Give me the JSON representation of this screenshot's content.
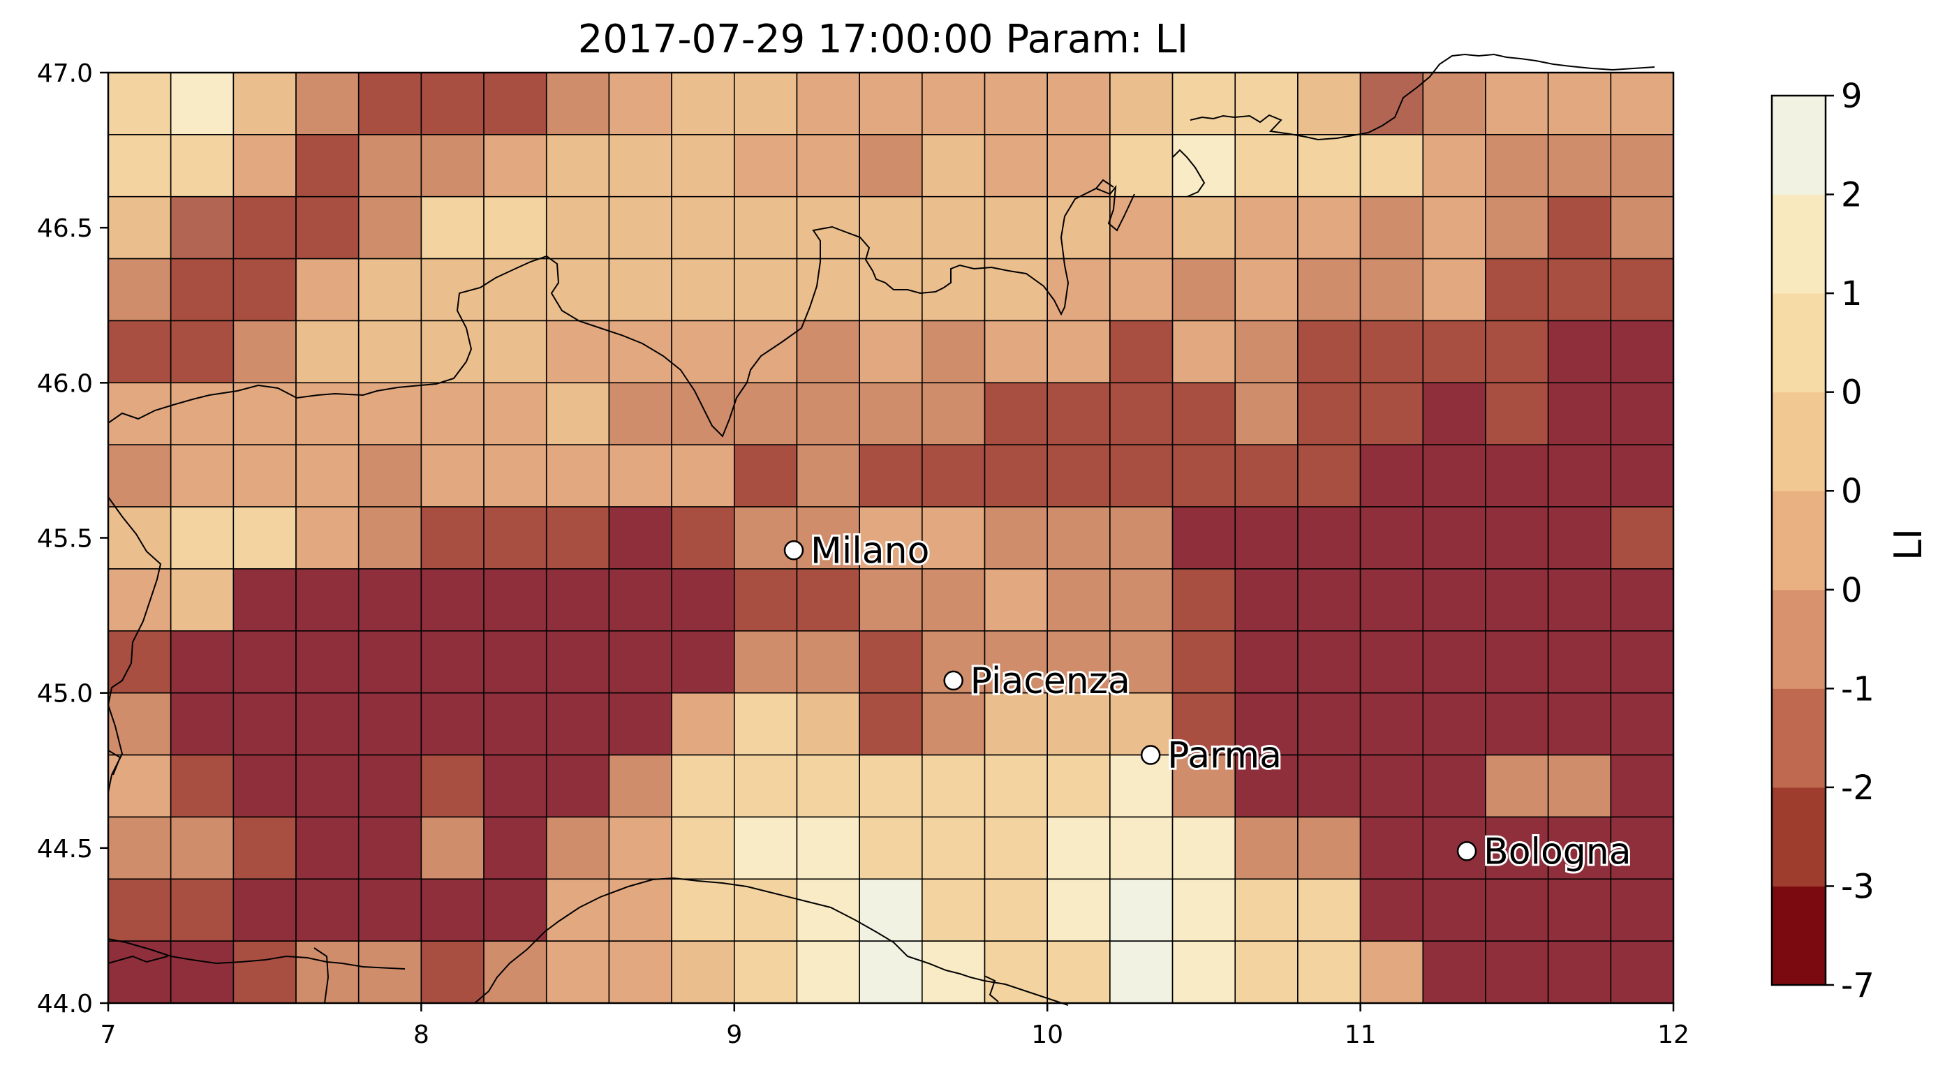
{
  "title": "2017-07-29 17:00:00 Param: LI",
  "chart_data": {
    "type": "heatmap",
    "title": "2017-07-29 17:00:00 Param: LI",
    "xlim": [
      7,
      12
    ],
    "ylim": [
      44.0,
      47.0
    ],
    "x_ticks": [
      "7",
      "8",
      "9",
      "10",
      "11",
      "12"
    ],
    "y_ticks": [
      "44.0",
      "44.5",
      "45.0",
      "45.5",
      "46.0",
      "46.5",
      "47.0"
    ],
    "colorbar": {
      "label": "LI",
      "tick_labels": [
        "-7",
        "-3",
        "-2",
        "-1",
        "0",
        "0",
        "0",
        "1",
        "2",
        "9"
      ],
      "colors": [
        "#7b0a10",
        "#9e3d2e",
        "#bf6a50",
        "#d8926d",
        "#e9b181",
        "#f1c792",
        "#f7dba6",
        "#f9e9be",
        "#f2f2e3"
      ]
    },
    "grid": {
      "lon_start": 7.0,
      "lon_step": 0.2,
      "lat_top": 47.0,
      "lat_step": 0.2,
      "note_rows_top_to_bottom": true,
      "values": [
        [
          6,
          7,
          5,
          3,
          1,
          1,
          1,
          3,
          4,
          5,
          5,
          4,
          4,
          4,
          4,
          4,
          5,
          6,
          6,
          5,
          2,
          3,
          4,
          4,
          4
        ],
        [
          6,
          6,
          4,
          1,
          3,
          3,
          4,
          5,
          5,
          5,
          4,
          4,
          3,
          5,
          4,
          4,
          6,
          7,
          6,
          6,
          6,
          4,
          3,
          3,
          3
        ],
        [
          5,
          2,
          1,
          1,
          3,
          6,
          6,
          5,
          5,
          5,
          5,
          5,
          5,
          5,
          5,
          5,
          4,
          5,
          4,
          4,
          3,
          4,
          3,
          1,
          3
        ],
        [
          3,
          1,
          1,
          4,
          5,
          5,
          5,
          5,
          5,
          5,
          5,
          5,
          5,
          5,
          5,
          4,
          4,
          3,
          4,
          3,
          3,
          4,
          1,
          1,
          1
        ],
        [
          1,
          1,
          3,
          5,
          5,
          5,
          5,
          4,
          4,
          4,
          4,
          3,
          4,
          3,
          4,
          4,
          1,
          4,
          3,
          1,
          1,
          1,
          1,
          0,
          0
        ],
        [
          4,
          4,
          4,
          4,
          4,
          4,
          4,
          5,
          3,
          3,
          3,
          3,
          3,
          3,
          1,
          1,
          1,
          1,
          3,
          1,
          1,
          0,
          1,
          0,
          0
        ],
        [
          3,
          4,
          4,
          4,
          3,
          4,
          4,
          4,
          4,
          4,
          1,
          3,
          1,
          1,
          1,
          1,
          1,
          1,
          1,
          1,
          0,
          0,
          0,
          0,
          0
        ],
        [
          5,
          6,
          6,
          4,
          3,
          1,
          1,
          1,
          0,
          1,
          3,
          3,
          4,
          4,
          3,
          3,
          3,
          0,
          0,
          0,
          0,
          0,
          0,
          0,
          1
        ],
        [
          4,
          5,
          0,
          0,
          0,
          0,
          0,
          0,
          0,
          0,
          1,
          1,
          3,
          3,
          4,
          3,
          3,
          1,
          0,
          0,
          0,
          0,
          0,
          0,
          0
        ],
        [
          1,
          0,
          0,
          0,
          0,
          0,
          0,
          0,
          0,
          0,
          3,
          3,
          1,
          3,
          3,
          3,
          3,
          1,
          0,
          0,
          0,
          0,
          0,
          0,
          0
        ],
        [
          3,
          0,
          0,
          0,
          0,
          0,
          0,
          0,
          0,
          4,
          6,
          5,
          1,
          3,
          5,
          5,
          5,
          1,
          0,
          0,
          0,
          0,
          0,
          0,
          0
        ],
        [
          4,
          1,
          0,
          0,
          0,
          1,
          0,
          0,
          3,
          6,
          6,
          6,
          6,
          6,
          6,
          6,
          7,
          3,
          0,
          0,
          0,
          0,
          3,
          3,
          0
        ],
        [
          3,
          3,
          1,
          0,
          0,
          3,
          0,
          3,
          4,
          6,
          7,
          7,
          6,
          6,
          6,
          7,
          7,
          7,
          3,
          3,
          0,
          0,
          0,
          0,
          0
        ],
        [
          1,
          1,
          0,
          0,
          0,
          0,
          0,
          4,
          4,
          6,
          6,
          7,
          8,
          6,
          6,
          7,
          8,
          7,
          6,
          6,
          0,
          0,
          0,
          0,
          0
        ],
        [
          0,
          0,
          1,
          3,
          3,
          1,
          3,
          4,
          4,
          5,
          6,
          7,
          8,
          7,
          6,
          6,
          8,
          7,
          6,
          6,
          4,
          0,
          0,
          0,
          0
        ]
      ]
    },
    "cities": [
      {
        "name": "Milano",
        "lon": 9.19,
        "lat": 45.46
      },
      {
        "name": "Piacenza",
        "lon": 9.7,
        "lat": 45.04
      },
      {
        "name": "Parma",
        "lon": 10.33,
        "lat": 44.8
      },
      {
        "name": "Bologna",
        "lon": 11.34,
        "lat": 44.49
      }
    ]
  }
}
